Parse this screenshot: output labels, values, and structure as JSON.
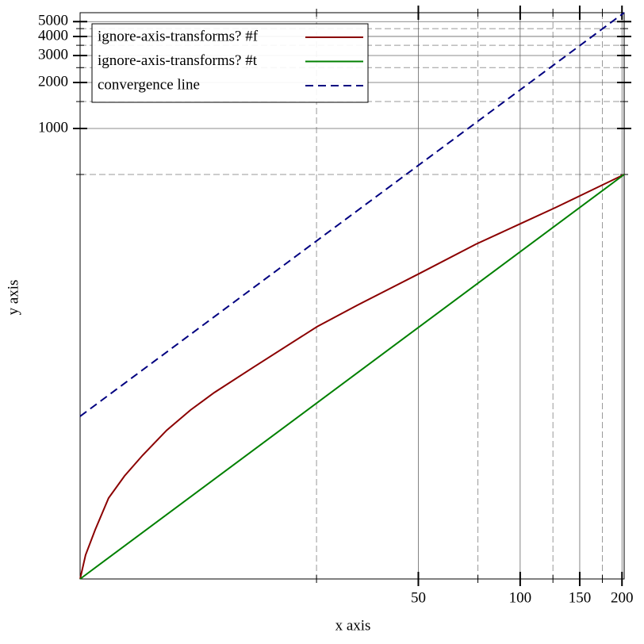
{
  "chart_data": {
    "type": "line",
    "xlabel": "x axis",
    "ylabel": "y axis",
    "xscale": "log",
    "yscale": "log",
    "xlim": [
      5,
      203
    ],
    "ylim": [
      1.13,
      5720
    ],
    "xticks": [
      50,
      100,
      150,
      200
    ],
    "yticks": [
      1000,
      2000,
      3000,
      4000,
      5000
    ],
    "xminorticks": [
      25,
      75,
      125,
      175
    ],
    "yminorticks": [
      500,
      1500,
      2500,
      3500,
      4500
    ],
    "grid": true,
    "legend": "top-left",
    "series": [
      {
        "name": "ignore-axis-transforms? #f",
        "color": "#8b0000",
        "style": "solid",
        "x": [
          5,
          5.19,
          5.54,
          6.07,
          6.77,
          7.66,
          9.01,
          10.6,
          12.45,
          16.3,
          25.1,
          32.9,
          50.2,
          74,
          100,
          127,
          203
        ],
        "values": [
          1.13,
          1.62,
          2.37,
          3.82,
          5.34,
          7.29,
          10.6,
          14.4,
          18.7,
          27.5,
          50.5,
          69.6,
          112,
          175,
          238,
          303,
          500
        ]
      },
      {
        "name": "ignore-axis-transforms? #t",
        "color": "#008000",
        "style": "solid",
        "x": [
          5,
          203
        ],
        "values": [
          1.13,
          500
        ]
      },
      {
        "name": "convergence line",
        "color": "#000080",
        "style": "dashed",
        "x": [
          5,
          203
        ],
        "values": [
          13.1,
          5720
        ]
      }
    ]
  }
}
